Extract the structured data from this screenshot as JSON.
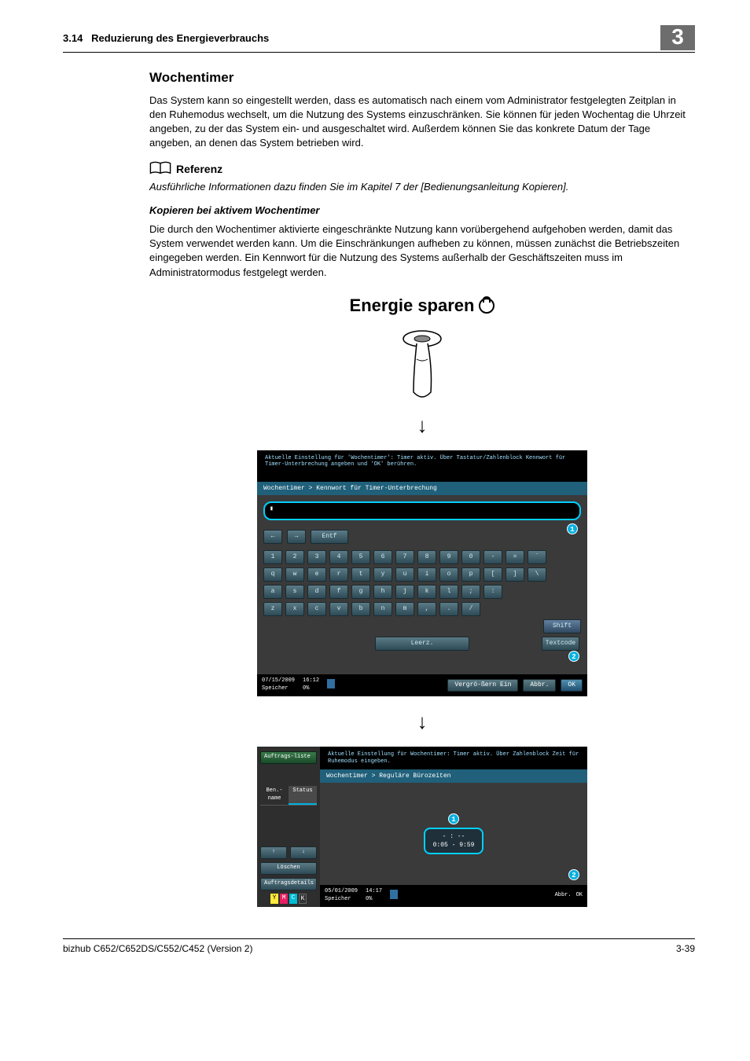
{
  "header": {
    "section_num": "3.14",
    "section_title": "Reduzierung des Energieverbrauchs",
    "chapter": "3"
  },
  "wochentimer": {
    "heading": "Wochentimer",
    "para": "Das System kann so eingestellt werden, dass es automatisch nach einem vom Administrator festgelegten Zeitplan in den Ruhemodus wechselt, um die Nutzung des Systems einzuschränken. Sie können für jeden Wochentag die Uhrzeit angeben, zu der das System ein- und ausgeschaltet wird. Außerdem können Sie das konkrete Datum der Tage angeben, an denen das System betrieben wird."
  },
  "referenz": {
    "label": "Referenz",
    "text": "Ausführliche Informationen dazu finden Sie im Kapitel 7 der [Bedienungsanleitung Kopieren]."
  },
  "kopieren": {
    "heading": "Kopieren bei aktivem Wochentimer",
    "para": "Die durch den Wochentimer aktivierte eingeschränkte Nutzung kann vorübergehend aufgehoben werden, damit das System verwendet werden kann. Um die Einschränkungen aufheben zu können, müssen zunächst die Betriebszeiten eingegeben werden. Ein Kennwort für die Nutzung des Systems außerhalb der Geschäftszeiten muss im Administratormodus festgelegt werden."
  },
  "energie": {
    "title": "Energie sparen"
  },
  "panel1": {
    "topmsg": "Aktuelle Einstellung für 'Wochentimer': Timer aktiv. Über Tastatur/Zahlenblock Kennwort für Timer-Unterbrechung angeben und 'OK' berühren.",
    "crumb": "Wochentimer > Kennwort für Timer-Unterbrechung",
    "nav": {
      "left": "←",
      "right": "→",
      "del": "Entf"
    },
    "rows": {
      "r1": [
        "1",
        "2",
        "3",
        "4",
        "5",
        "6",
        "7",
        "8",
        "9",
        "0",
        "-",
        "=",
        "`"
      ],
      "r2": [
        "q",
        "w",
        "e",
        "r",
        "t",
        "y",
        "u",
        "i",
        "o",
        "p",
        "[",
        "]",
        "\\"
      ],
      "r3": [
        "a",
        "s",
        "d",
        "f",
        "g",
        "h",
        "j",
        "k",
        "l",
        ";",
        ":"
      ],
      "r4": [
        "z",
        "x",
        "c",
        "v",
        "b",
        "n",
        "m",
        ",",
        ".",
        "/"
      ]
    },
    "shift": "Shift",
    "space": "Leerz.",
    "textcode": "Textcode",
    "badge1": "1",
    "badge2": "2",
    "status": {
      "date": "07/15/2009",
      "time": "16:12",
      "mem_label": "Speicher",
      "mem_val": "0%",
      "enlarge": "Vergrö-ßern Ein",
      "cancel": "Abbr.",
      "ok": "OK"
    }
  },
  "panel2": {
    "side": {
      "job": "Auftrags-liste",
      "tab1": "Ben.-name",
      "tab2": "Status",
      "up": "↑",
      "down": "↓",
      "del": "Löschen",
      "details": "Auftragsdetails",
      "y": "Y",
      "m": "M",
      "c": "C",
      "k": "K"
    },
    "topmsg": "Aktuelle Einstellung für Wochentimer: Timer aktiv. Über Zahlenblock Zeit für Ruhemodus eingeben.",
    "crumb": "Wochentimer > Reguläre Bürozeiten",
    "badge1": "1",
    "time_line1": "- : --",
    "time_line2": "0:05  -  9:59",
    "badge2": "2",
    "status": {
      "date": "05/01/2009",
      "time": "14:17",
      "mem_label": "Speicher",
      "mem_val": "0%",
      "cancel": "Abbr.",
      "ok": "OK"
    }
  },
  "footer": {
    "left": "bizhub C652/C652DS/C552/C452 (Version 2)",
    "right": "3-39"
  }
}
